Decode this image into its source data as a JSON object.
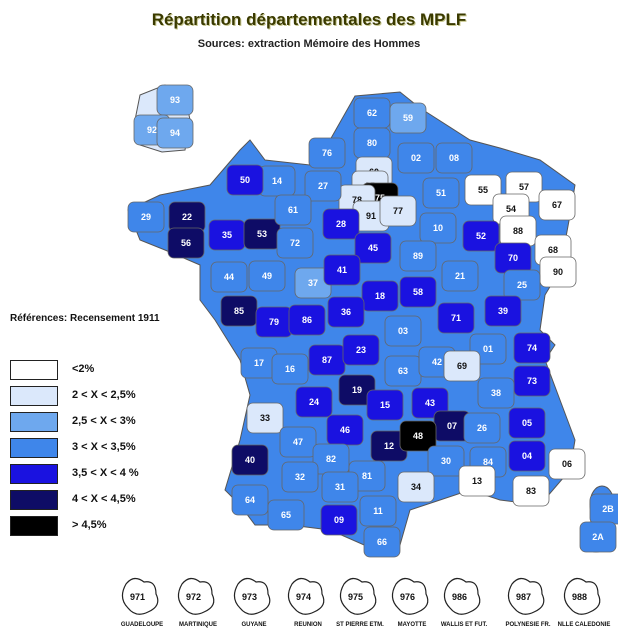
{
  "title": "Répartition départementales des MPLF",
  "subtitle": "Sources: extraction Mémoire des Hommes",
  "reference": "Références: Recensement 1911",
  "legend": [
    {
      "label": "<2%",
      "color": "#ffffff"
    },
    {
      "label": "2 < X < 2,5%",
      "color": "#dbe8fb"
    },
    {
      "label": "2,5 < X < 3%",
      "color": "#6ea8ee"
    },
    {
      "label": "3 < X < 3,5%",
      "color": "#3f86ea"
    },
    {
      "label": "3,5 < X < 4 %",
      "color": "#1a12e0"
    },
    {
      "label": "4 < X < 4,5%",
      "color": "#0e0c66"
    },
    {
      "label": "> 4,5%",
      "color": "#000000"
    }
  ],
  "departments": [
    {
      "code": "62",
      "class": 3
    },
    {
      "code": "59",
      "class": 2
    },
    {
      "code": "80",
      "class": 3
    },
    {
      "code": "76",
      "class": 3
    },
    {
      "code": "02",
      "class": 3
    },
    {
      "code": "08",
      "class": 3
    },
    {
      "code": "60",
      "class": 1
    },
    {
      "code": "95",
      "class": 1
    },
    {
      "code": "75",
      "class": 6
    },
    {
      "code": "78",
      "class": 1
    },
    {
      "code": "91",
      "class": 1
    },
    {
      "code": "77",
      "class": 1
    },
    {
      "code": "27",
      "class": 3
    },
    {
      "code": "14",
      "class": 3
    },
    {
      "code": "50",
      "class": 4
    },
    {
      "code": "51",
      "class": 3
    },
    {
      "code": "55",
      "class": 0
    },
    {
      "code": "57",
      "class": 0
    },
    {
      "code": "54",
      "class": 0
    },
    {
      "code": "67",
      "class": 0
    },
    {
      "code": "88",
      "class": 0
    },
    {
      "code": "68",
      "class": 0
    },
    {
      "code": "90",
      "class": 0
    },
    {
      "code": "29",
      "class": 3
    },
    {
      "code": "22",
      "class": 5
    },
    {
      "code": "56",
      "class": 5
    },
    {
      "code": "35",
      "class": 4
    },
    {
      "code": "53",
      "class": 5
    },
    {
      "code": "61",
      "class": 3
    },
    {
      "code": "72",
      "class": 3
    },
    {
      "code": "28",
      "class": 4
    },
    {
      "code": "45",
      "class": 4
    },
    {
      "code": "10",
      "class": 3
    },
    {
      "code": "52",
      "class": 4
    },
    {
      "code": "89",
      "class": 3
    },
    {
      "code": "21",
      "class": 3
    },
    {
      "code": "70",
      "class": 4
    },
    {
      "code": "25",
      "class": 3
    },
    {
      "code": "39",
      "class": 4
    },
    {
      "code": "44",
      "class": 3
    },
    {
      "code": "49",
      "class": 3
    },
    {
      "code": "37",
      "class": 2
    },
    {
      "code": "41",
      "class": 4
    },
    {
      "code": "18",
      "class": 4
    },
    {
      "code": "58",
      "class": 4
    },
    {
      "code": "71",
      "class": 4
    },
    {
      "code": "85",
      "class": 5
    },
    {
      "code": "79",
      "class": 4
    },
    {
      "code": "86",
      "class": 4
    },
    {
      "code": "36",
      "class": 4
    },
    {
      "code": "03",
      "class": 3
    },
    {
      "code": "01",
      "class": 3
    },
    {
      "code": "74",
      "class": 4
    },
    {
      "code": "73",
      "class": 4
    },
    {
      "code": "17",
      "class": 3
    },
    {
      "code": "16",
      "class": 3
    },
    {
      "code": "87",
      "class": 4
    },
    {
      "code": "23",
      "class": 4
    },
    {
      "code": "63",
      "class": 3
    },
    {
      "code": "42",
      "class": 3
    },
    {
      "code": "69",
      "class": 1
    },
    {
      "code": "38",
      "class": 3
    },
    {
      "code": "33",
      "class": 1
    },
    {
      "code": "24",
      "class": 4
    },
    {
      "code": "19",
      "class": 5
    },
    {
      "code": "15",
      "class": 4
    },
    {
      "code": "43",
      "class": 4
    },
    {
      "code": "07",
      "class": 5
    },
    {
      "code": "26",
      "class": 3
    },
    {
      "code": "05",
      "class": 4
    },
    {
      "code": "46",
      "class": 4
    },
    {
      "code": "12",
      "class": 5
    },
    {
      "code": "48",
      "class": 6
    },
    {
      "code": "30",
      "class": 3
    },
    {
      "code": "84",
      "class": 3
    },
    {
      "code": "04",
      "class": 4
    },
    {
      "code": "06",
      "class": 0
    },
    {
      "code": "40",
      "class": 5
    },
    {
      "code": "47",
      "class": 3
    },
    {
      "code": "82",
      "class": 3
    },
    {
      "code": "81",
      "class": 3
    },
    {
      "code": "32",
      "class": 3
    },
    {
      "code": "31",
      "class": 3
    },
    {
      "code": "34",
      "class": 1
    },
    {
      "code": "13",
      "class": 0
    },
    {
      "code": "83",
      "class": 0
    },
    {
      "code": "64",
      "class": 3
    },
    {
      "code": "65",
      "class": 3
    },
    {
      "code": "09",
      "class": 4
    },
    {
      "code": "11",
      "class": 3
    },
    {
      "code": "66",
      "class": 3
    },
    {
      "code": "2B",
      "class": 3
    },
    {
      "code": "2A",
      "class": 3
    },
    {
      "code": "93",
      "class": 2
    },
    {
      "code": "92",
      "class": 2
    },
    {
      "code": "94",
      "class": 2
    }
  ],
  "overseas": [
    {
      "code": "971",
      "name": "GUADELOUPE"
    },
    {
      "code": "972",
      "name": "MARTINIQUE"
    },
    {
      "code": "973",
      "name": "GUYANE"
    },
    {
      "code": "974",
      "name": "REUNION"
    },
    {
      "code": "975",
      "name": "ST PIERRE ETM."
    },
    {
      "code": "976",
      "name": "MAYOTTE"
    },
    {
      "code": "986",
      "name": "WALLIS ET FUT."
    },
    {
      "code": "987",
      "name": "POLYNESIE FR."
    },
    {
      "code": "988",
      "name": "NLLE CALEDONIE"
    }
  ]
}
